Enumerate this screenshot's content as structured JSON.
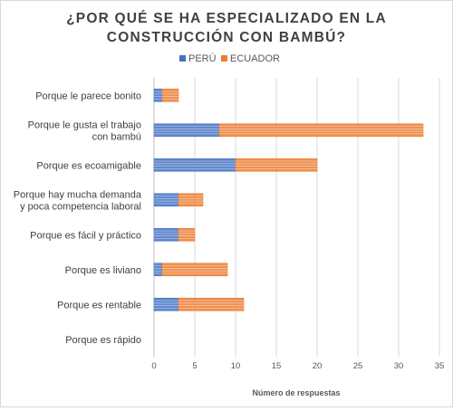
{
  "chart_data": {
    "type": "bar",
    "orientation": "horizontal",
    "stacked": true,
    "title_line1": "¿POR QUÉ SE HA ESPECIALIZADO EN LA",
    "title_line2": "CONSTRUCCIÓN CON BAMBÚ?",
    "xlabel": "Número de respuestas",
    "xlim": [
      0,
      35
    ],
    "xticks": [
      0,
      5,
      10,
      15,
      20,
      25,
      30,
      35
    ],
    "grid": true,
    "legend_position": "top",
    "categories": [
      [
        "Porque le parece bonito"
      ],
      [
        "Porque le gusta el trabajo",
        "con bambú"
      ],
      [
        "Porque es ecoamigable"
      ],
      [
        "Porque hay mucha demanda",
        "y poca competencia laboral"
      ],
      [
        "Porque es fácil y práctico"
      ],
      [
        "Porque es liviano"
      ],
      [
        "Porque es rentable"
      ],
      [
        "Porque es rápido"
      ]
    ],
    "series": [
      {
        "name": "PERÚ",
        "color": "#4472c4",
        "values": [
          1,
          8,
          10,
          3,
          3,
          1,
          3,
          0
        ]
      },
      {
        "name": "ECUADOR",
        "color": "#ed7d31",
        "values": [
          2,
          25,
          10,
          3,
          2,
          8,
          8,
          0
        ]
      }
    ]
  }
}
